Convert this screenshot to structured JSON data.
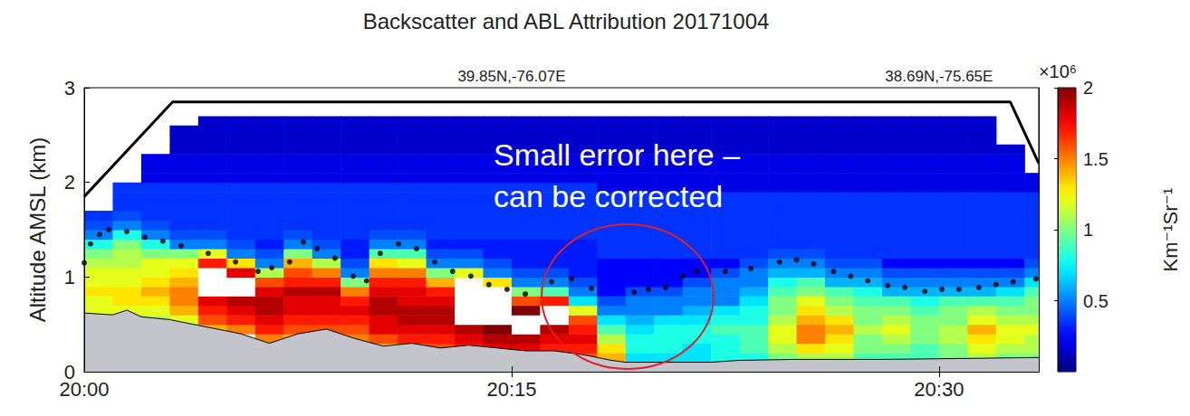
{
  "chart_data": {
    "type": "heatmap",
    "title": "Backscatter and ABL Attribution 20171004",
    "ylabel": "Altitude AMSL (km)",
    "xlim": [
      1200,
      1233.5
    ],
    "xticks": [
      {
        "value": 1200,
        "label": "20:00"
      },
      {
        "value": 1215,
        "label": "20:15"
      },
      {
        "value": 1230,
        "label": "20:30"
      }
    ],
    "x2lim": [
      1200,
      1233.5
    ],
    "x2ticks": [
      {
        "value": 1215,
        "label": "39.85N,-76.07E"
      },
      {
        "value": 1230,
        "label": "38.69N,-75.65E"
      }
    ],
    "ylim": [
      0,
      3
    ],
    "yticks": [
      0,
      1,
      2,
      3
    ],
    "grid": false,
    "colorbar": {
      "lim": [
        0,
        2
      ],
      "ticks": [
        0.5,
        1,
        1.5,
        2
      ],
      "multiplier": "×10⁶",
      "label": "Km⁻¹Sr⁻¹"
    },
    "cell_x": [
      1200,
      1201,
      1202,
      1203,
      1204,
      1205,
      1206,
      1207,
      1208,
      1209,
      1210,
      1211,
      1212,
      1213,
      1214,
      1215,
      1216,
      1217,
      1218,
      1219,
      1220,
      1221,
      1222,
      1223,
      1224,
      1225,
      1226,
      1227,
      1228,
      1229,
      1230,
      1231,
      1232,
      1233
    ],
    "cell_y": [
      0.1,
      0.2,
      0.3,
      0.4,
      0.5,
      0.6,
      0.7,
      0.8,
      0.9,
      1.0,
      1.1,
      1.2,
      1.3,
      1.4,
      1.5,
      1.6,
      1.7,
      1.8,
      1.9,
      2.0,
      2.1,
      2.2,
      2.3,
      2.4,
      2.5,
      2.6
    ],
    "cells": [
      [
        null,
        null,
        null,
        null,
        null,
        null,
        null,
        null,
        null,
        null,
        null,
        null,
        null,
        null,
        null,
        null,
        null,
        1.6,
        1.4,
        0.7,
        0.7,
        0.7,
        0.8,
        0.8,
        1.0,
        1.1,
        1.1,
        0.9,
        0.9,
        0.9,
        1.0,
        1.1,
        1.0,
        1.0
      ],
      [
        null,
        null,
        null,
        null,
        null,
        null,
        null,
        null,
        null,
        null,
        1.4,
        1.5,
        1.6,
        1.7,
        1.8,
        1.8,
        1.7,
        1.7,
        1.3,
        0.8,
        0.8,
        0.7,
        0.8,
        0.9,
        1.1,
        1.3,
        1.2,
        1.0,
        1.0,
        0.9,
        1.0,
        1.2,
        1.1,
        1.1
      ],
      [
        null,
        null,
        null,
        null,
        null,
        null,
        1.5,
        1.4,
        null,
        1.5,
        1.6,
        1.7,
        1.7,
        1.8,
        1.9,
        1.9,
        1.8,
        1.8,
        1.1,
        0.8,
        0.8,
        0.8,
        0.8,
        0.9,
        1.2,
        1.5,
        1.3,
        1.0,
        1.1,
        1.0,
        1.1,
        1.3,
        1.2,
        1.1
      ],
      [
        null,
        null,
        null,
        null,
        1.4,
        1.5,
        1.7,
        1.6,
        1.6,
        1.6,
        1.8,
        1.8,
        1.8,
        1.9,
        2.0,
        2.1,
        1.9,
        1.7,
        0.9,
        0.7,
        0.8,
        0.8,
        0.9,
        0.9,
        1.2,
        1.5,
        1.4,
        1.1,
        1.2,
        1.0,
        1.1,
        1.4,
        1.2,
        1.2
      ],
      [
        1.0,
        1.0,
        1.1,
        1.2,
        1.6,
        1.7,
        1.8,
        1.7,
        1.7,
        1.7,
        1.8,
        1.9,
        1.9,
        2.2,
        2.3,
        2.2,
        2.1,
        1.6,
        0.7,
        0.6,
        0.7,
        0.7,
        0.8,
        0.8,
        1.1,
        1.4,
        1.3,
        1.0,
        1.1,
        1.0,
        1.0,
        1.2,
        1.1,
        1.1
      ],
      [
        1.2,
        1.2,
        1.2,
        1.4,
        1.7,
        1.8,
        1.9,
        1.8,
        1.8,
        1.8,
        1.9,
        1.9,
        1.9,
        2.3,
        2.3,
        2.0,
        2.2,
        1.2,
        0.5,
        0.5,
        0.5,
        0.6,
        0.7,
        0.8,
        1.0,
        1.3,
        1.1,
        1.0,
        1.0,
        0.9,
        1.0,
        1.1,
        1.0,
        1.0
      ],
      [
        1.2,
        1.3,
        1.3,
        1.5,
        1.8,
        1.9,
        1.9,
        1.8,
        1.8,
        1.7,
        1.9,
        1.8,
        1.8,
        2.2,
        2.2,
        1.6,
        1.7,
        0.7,
        0.4,
        0.5,
        0.5,
        0.5,
        0.5,
        0.7,
        1.0,
        1.2,
        1.0,
        0.9,
        0.9,
        0.8,
        0.9,
        0.9,
        0.9,
        1.0
      ],
      [
        1.3,
        1.3,
        1.4,
        1.5,
        2.2,
        2.1,
        1.8,
        1.9,
        1.9,
        1.5,
        1.8,
        1.8,
        1.7,
        2.2,
        2.1,
        1.0,
        0.9,
        0.5,
        0.25,
        0.4,
        0.4,
        0.5,
        0.5,
        0.6,
        0.9,
        1.0,
        0.9,
        0.8,
        0.6,
        0.6,
        0.6,
        0.6,
        0.7,
        0.9
      ],
      [
        1.2,
        1.2,
        1.3,
        1.4,
        2.2,
        2.2,
        1.6,
        1.7,
        1.7,
        1.0,
        1.7,
        1.7,
        1.4,
        2.1,
        1.3,
        0.5,
        0.5,
        0.4,
        0.25,
        0.25,
        0.25,
        0.4,
        0.5,
        0.5,
        0.8,
        0.9,
        0.6,
        0.6,
        0.5,
        0.5,
        0.5,
        0.5,
        0.5,
        0.7
      ],
      [
        1.2,
        1.2,
        1.2,
        1.3,
        2.1,
        1.8,
        1.1,
        1.6,
        1.5,
        0.5,
        1.5,
        1.5,
        1.0,
        1.2,
        0.5,
        0.4,
        0.4,
        0.3,
        0.25,
        0.25,
        0.25,
        0.25,
        0.4,
        0.5,
        0.6,
        0.6,
        0.5,
        0.5,
        0.4,
        0.4,
        0.4,
        0.4,
        0.4,
        0.5
      ],
      [
        1.1,
        1.1,
        1.2,
        1.2,
        1.7,
        1.3,
        0.5,
        1.4,
        1.1,
        0.4,
        1.3,
        1.2,
        0.5,
        0.5,
        0.4,
        0.3,
        0.3,
        0.3,
        0.25,
        0.25,
        0.25,
        0.25,
        0.25,
        0.4,
        0.5,
        0.5,
        0.4,
        0.4,
        0.25,
        0.25,
        0.25,
        0.25,
        0.25,
        0.4
      ],
      [
        1.0,
        1.1,
        1.0,
        1.0,
        1.2,
        0.5,
        0.4,
        1.0,
        0.5,
        0.3,
        0.9,
        0.9,
        0.4,
        0.4,
        0.3,
        0.3,
        0.3,
        0.3,
        0.35,
        0.35,
        0.35,
        0.35,
        0.35,
        0.35,
        0.4,
        0.4,
        0.35,
        0.35,
        0.35,
        0.35,
        0.35,
        0.35,
        0.35,
        0.35
      ],
      [
        0.8,
        1.0,
        0.8,
        0.5,
        0.5,
        0.4,
        0.3,
        0.5,
        0.4,
        0.3,
        0.5,
        0.5,
        0.3,
        0.3,
        0.3,
        0.3,
        0.3,
        0.3,
        0.35,
        0.35,
        0.35,
        0.35,
        0.35,
        0.35,
        0.35,
        0.35,
        0.35,
        0.35,
        0.35,
        0.35,
        0.35,
        0.35,
        0.35,
        0.35
      ],
      [
        0.5,
        0.8,
        0.5,
        0.4,
        0.4,
        0.35,
        0.35,
        0.4,
        0.35,
        0.35,
        0.4,
        0.4,
        0.35,
        0.35,
        0.35,
        0.35,
        0.35,
        0.35,
        0.35,
        0.35,
        0.35,
        0.35,
        0.35,
        0.35,
        0.35,
        0.35,
        0.35,
        0.35,
        0.35,
        0.35,
        0.35,
        0.35,
        0.35,
        0.35
      ],
      [
        0.4,
        0.5,
        0.4,
        0.35,
        0.35,
        0.35,
        0.35,
        0.35,
        0.35,
        0.35,
        0.35,
        0.35,
        0.35,
        0.35,
        0.35,
        0.35,
        0.35,
        0.35,
        0.35,
        0.35,
        0.35,
        0.35,
        0.35,
        0.35,
        0.35,
        0.35,
        0.35,
        0.35,
        0.35,
        0.35,
        0.35,
        0.35,
        0.35,
        0.35
      ],
      [
        0.35,
        0.4,
        0.35,
        0.35,
        0.35,
        0.35,
        0.35,
        0.35,
        0.35,
        0.35,
        0.35,
        0.35,
        0.35,
        0.35,
        0.35,
        0.35,
        0.35,
        0.35,
        0.35,
        0.35,
        0.35,
        0.35,
        0.35,
        0.35,
        0.35,
        0.35,
        0.35,
        0.35,
        0.35,
        0.35,
        0.35,
        0.35,
        0.35,
        0.35
      ],
      [
        null,
        0.35,
        0.35,
        0.35,
        0.35,
        0.35,
        0.35,
        0.35,
        0.35,
        0.35,
        0.35,
        0.35,
        0.35,
        0.35,
        0.35,
        0.35,
        0.35,
        0.35,
        0.35,
        0.35,
        0.35,
        0.35,
        0.35,
        0.35,
        0.35,
        0.35,
        0.35,
        0.35,
        0.35,
        0.35,
        0.35,
        0.35,
        0.35,
        0.35
      ],
      [
        null,
        0.35,
        0.35,
        0.35,
        0.35,
        0.35,
        0.35,
        0.35,
        0.35,
        0.35,
        0.35,
        0.35,
        0.35,
        0.35,
        0.35,
        0.35,
        0.35,
        0.35,
        0.35,
        0.35,
        0.35,
        0.35,
        0.35,
        0.35,
        0.35,
        0.35,
        0.35,
        0.35,
        0.35,
        0.35,
        0.35,
        0.35,
        0.35,
        0.35
      ],
      [
        null,
        0.35,
        0.35,
        0.35,
        0.35,
        0.35,
        0.35,
        0.35,
        0.35,
        0.35,
        0.35,
        0.35,
        0.35,
        0.35,
        0.35,
        0.35,
        0.35,
        0.35,
        0.2,
        0.2,
        0.2,
        0.2,
        0.2,
        0.2,
        0.2,
        0.2,
        0.2,
        0.2,
        0.2,
        0.2,
        0.2,
        0.2,
        0.2,
        0.2
      ],
      [
        null,
        null,
        0.2,
        0.2,
        0.2,
        0.2,
        0.2,
        0.2,
        0.2,
        0.2,
        0.2,
        0.2,
        0.2,
        0.2,
        0.2,
        0.2,
        0.2,
        0.2,
        0.2,
        0.2,
        0.2,
        0.2,
        0.2,
        0.2,
        0.2,
        0.2,
        0.2,
        0.2,
        0.2,
        0.2,
        0.2,
        0.2,
        0.2,
        0.2
      ],
      [
        null,
        null,
        0.2,
        0.2,
        0.2,
        0.2,
        0.2,
        0.2,
        0.2,
        0.2,
        0.2,
        0.2,
        0.2,
        0.2,
        0.2,
        0.2,
        0.2,
        0.2,
        0.2,
        0.2,
        0.2,
        0.2,
        0.2,
        0.2,
        0.2,
        0.2,
        0.2,
        0.2,
        0.2,
        0.2,
        0.2,
        0.2,
        0.2,
        null
      ],
      [
        null,
        null,
        0.2,
        0.2,
        0.2,
        0.2,
        0.2,
        0.2,
        0.2,
        0.2,
        0.2,
        0.2,
        0.2,
        0.2,
        0.2,
        0.2,
        0.2,
        0.2,
        0.2,
        0.2,
        0.2,
        0.2,
        0.2,
        0.2,
        0.2,
        0.2,
        0.2,
        0.2,
        0.2,
        0.2,
        0.2,
        0.2,
        0.2,
        null
      ],
      [
        null,
        null,
        null,
        0.15,
        0.15,
        0.15,
        0.15,
        0.15,
        0.15,
        0.15,
        0.15,
        0.15,
        0.15,
        0.15,
        0.15,
        0.15,
        0.15,
        0.15,
        0.15,
        0.15,
        0.15,
        0.15,
        0.15,
        0.15,
        0.15,
        0.15,
        0.15,
        0.15,
        0.15,
        0.15,
        0.15,
        0.15,
        0.15,
        null
      ],
      [
        null,
        null,
        null,
        0.15,
        0.15,
        0.15,
        0.15,
        0.15,
        0.15,
        0.15,
        0.15,
        0.15,
        0.15,
        0.15,
        0.15,
        0.15,
        0.15,
        0.15,
        0.15,
        0.15,
        0.15,
        0.15,
        0.15,
        0.15,
        0.15,
        0.15,
        0.15,
        0.15,
        0.15,
        0.15,
        0.15,
        0.15,
        null,
        null
      ],
      [
        null,
        null,
        null,
        0.15,
        0.15,
        0.15,
        0.15,
        0.15,
        0.15,
        0.15,
        0.15,
        0.15,
        0.15,
        0.15,
        0.15,
        0.15,
        0.15,
        0.15,
        0.15,
        0.15,
        0.15,
        0.15,
        0.15,
        0.15,
        0.15,
        0.15,
        0.15,
        0.15,
        0.15,
        0.15,
        0.15,
        0.15,
        null,
        null
      ],
      [
        null,
        null,
        null,
        null,
        0.15,
        0.15,
        0.15,
        0.15,
        0.15,
        0.15,
        0.15,
        0.15,
        0.15,
        0.15,
        0.15,
        0.15,
        0.15,
        0.15,
        0.15,
        0.15,
        0.15,
        0.15,
        0.15,
        0.15,
        0.15,
        0.15,
        0.15,
        0.15,
        0.15,
        0.15,
        0.15,
        0.15,
        null,
        null
      ]
    ],
    "series": [
      {
        "type": "area",
        "color": "#c4c4cc",
        "x": [
          1200,
          1201,
          1201.5,
          1202,
          1203,
          1203.5,
          1204.5,
          1205.5,
          1206.5,
          1207.5,
          1208.5,
          1209.5,
          1210.5,
          1211.5,
          1212.5,
          1213.5,
          1214.5,
          1215.5,
          1216.5,
          1217.5,
          1218.5,
          1219,
          1220,
          1222,
          1223,
          1225,
          1228,
          1231,
          1233.5
        ],
        "values": [
          0.62,
          0.6,
          0.65,
          0.58,
          0.55,
          0.52,
          0.46,
          0.4,
          0.3,
          0.4,
          0.45,
          0.35,
          0.27,
          0.3,
          0.25,
          0.28,
          0.25,
          0.22,
          0.22,
          0.18,
          0.12,
          0.1,
          0.1,
          0.1,
          0.12,
          0.13,
          0.13,
          0.14,
          0.15
        ]
      },
      {
        "type": "line",
        "color": "#000000",
        "x": [
          1200,
          1203.1,
          1232.5,
          1233.5
        ],
        "values": [
          1.85,
          2.85,
          2.85,
          2.2
        ]
      },
      {
        "type": "scatter",
        "color": "#000000",
        "marker": "circle",
        "x": [
          1200,
          1200.22,
          1200.54,
          1200.86,
          1201.49,
          1202.13,
          1202.76,
          1203.4,
          1204.35,
          1205.31,
          1206.1,
          1206.58,
          1207.21,
          1207.69,
          1208.17,
          1208.8,
          1209.44,
          1209.91,
          1210.39,
          1211.03,
          1211.66,
          1212.3,
          1212.93,
          1213.57,
          1214.2,
          1214.84,
          1215.48,
          1216.4,
          1217.1,
          1217.8,
          1219.3,
          1219.8,
          1220.4,
          1221,
          1221.5,
          1222.5,
          1223.4,
          1224.4,
          1225,
          1225.6,
          1226.3,
          1226.9,
          1227.5,
          1228.2,
          1228.8,
          1229.5,
          1230.1,
          1230.7,
          1231.4,
          1232,
          1232.6,
          1233.4
        ],
        "values": [
          1.15,
          1.35,
          1.45,
          1.5,
          1.48,
          1.42,
          1.38,
          1.33,
          1.25,
          1.16,
          1.06,
          1.1,
          1.16,
          1.37,
          1.3,
          1.2,
          1.01,
          0.96,
          1.25,
          1.35,
          1.3,
          1.16,
          1.06,
          1.01,
          0.92,
          0.87,
          0.82,
          0.95,
          0.98,
          0.88,
          0.84,
          0.87,
          0.89,
          1.01,
          1.06,
          1.06,
          1.09,
          1.16,
          1.18,
          1.14,
          1.06,
          1.01,
          0.96,
          0.91,
          0.89,
          0.85,
          0.87,
          0.87,
          0.89,
          0.92,
          0.95,
          0.98
        ]
      }
    ],
    "annotation": "Small error here – can be corrected"
  }
}
